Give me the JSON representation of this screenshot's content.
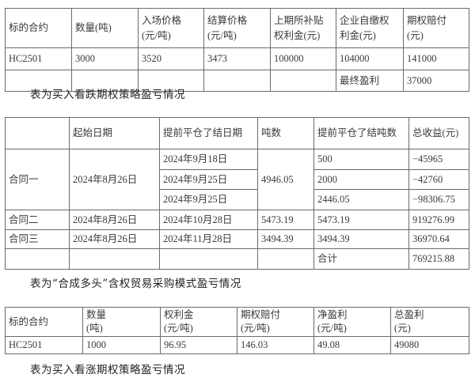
{
  "table1": {
    "headers": [
      "标的合约",
      "数量(吨)",
      "入场价格\n(元/吨)",
      "结算价格\n(元/吨)",
      "上期所补贴\n权利金(元)",
      "企业自缴权\n利金(元)",
      "期权赔付\n(元)"
    ],
    "rows": [
      [
        "HC2501",
        "3000",
        "3520",
        "3473",
        "100000",
        "104000",
        "141000"
      ]
    ],
    "final_label": "最终盈利",
    "final_value": "37000",
    "caption": "表为买入看跌期权策略盈亏情况"
  },
  "table2": {
    "headers": [
      "",
      "起始日期",
      "提前平仓了结日期",
      "吨数",
      "提前平仓了结吨数",
      "总收益(元)"
    ],
    "contract1": {
      "name": "合同一",
      "start": "2024年8月26日",
      "tons": "4946.05",
      "subrows": [
        {
          "close_date": "2024年9月18日",
          "close_tons": "500",
          "income": "−45965"
        },
        {
          "close_date": "2024年9月25日",
          "close_tons": "2000",
          "income": "−42760"
        },
        {
          "close_date": "2024年9月25日",
          "close_tons": "2446.05",
          "income": "−98306.75"
        }
      ]
    },
    "contract2": {
      "name": "合同二",
      "start": "2024年8月26日",
      "close_date": "2024年10月28日",
      "tons": "5473.19",
      "close_tons": "5473.19",
      "income": "919276.99"
    },
    "contract3": {
      "name": "合同三",
      "start": "2024年8月26日",
      "close_date": "2024年11月28日",
      "tons": "3494.39",
      "close_tons": "3494.39",
      "income": "36970.64"
    },
    "total_label": "合计",
    "total_value": "769215.88",
    "caption": "表为“合成多头”含权贸易采购模式盈亏情况"
  },
  "table3": {
    "headers": [
      "标的合约",
      "数量\n(吨)",
      "权利金\n(元/吨)",
      "期权赔付\n(元/吨)",
      "净盈利\n(元/吨)",
      "总盈利\n(元)"
    ],
    "row": [
      "HC2501",
      "1000",
      "96.95",
      "146.03",
      "49.08",
      "49080"
    ],
    "caption": "表为买入看涨期权策略盈亏情况"
  }
}
